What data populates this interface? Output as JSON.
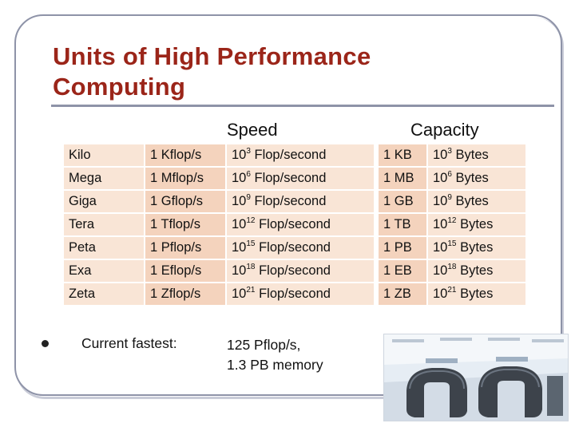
{
  "title": "Units of High Performance\nComputing",
  "headers": {
    "speed": "Speed",
    "capacity": "Capacity"
  },
  "rows": [
    {
      "prefix": "Kilo",
      "flop": "1 Kflop/s",
      "speed_exp": "3",
      "speed_unit": "Flop/second",
      "cap": "1 KB",
      "cap_exp": "3",
      "cap_unit": "Bytes"
    },
    {
      "prefix": "Mega",
      "flop": "1 Mflop/s",
      "speed_exp": "6",
      "speed_unit": "Flop/second",
      "cap": "1 MB",
      "cap_exp": "6",
      "cap_unit": "Bytes"
    },
    {
      "prefix": "Giga",
      "flop": "1 Gflop/s",
      "speed_exp": "9",
      "speed_unit": "Flop/second",
      "cap": "1 GB",
      "cap_exp": "9",
      "cap_unit": "Bytes"
    },
    {
      "prefix": "Tera",
      "flop": "1 Tflop/s",
      "speed_exp": "12",
      "speed_unit": "Flop/second",
      "cap": "1 TB",
      "cap_exp": "12",
      "cap_unit": "Bytes"
    },
    {
      "prefix": "Peta",
      "flop": "1 Pflop/s",
      "speed_exp": "15",
      "speed_unit": "Flop/second",
      "cap": "1 PB",
      "cap_exp": "15",
      "cap_unit": "Bytes"
    },
    {
      "prefix": "Exa",
      "flop": "1 Eflop/s",
      "speed_exp": "18",
      "speed_unit": "Flop/second",
      "cap": "1 EB",
      "cap_exp": "18",
      "cap_unit": "Bytes"
    },
    {
      "prefix": "Zeta",
      "flop": "1 Zflop/s",
      "speed_exp": "21",
      "speed_unit": "Flop/second",
      "cap": "1 ZB",
      "cap_exp": "21",
      "cap_unit": "Bytes"
    }
  ],
  "current_fastest": {
    "label": "Current fastest:",
    "value": "125 Pflop/s,\n1.3 PB memory"
  },
  "colors": {
    "title": "#9b2519",
    "row_light": "#f9e5d6",
    "row_dark": "#f4d3bd",
    "frame": "#8e93a8"
  }
}
